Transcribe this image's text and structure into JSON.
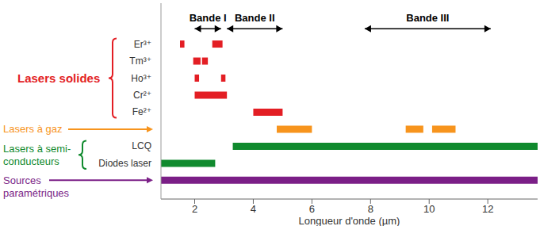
{
  "chart_data": {
    "type": "range_bar",
    "orientation": "horizontal",
    "x_label": "Longueur d'onde (µm)",
    "xlim": [
      0.85,
      13.7
    ],
    "xticks": [
      2,
      4,
      6,
      8,
      10,
      12
    ],
    "groups": [
      {
        "label": [
          "Lasers solides"
        ],
        "color": "#e31e24",
        "rows": [
          {
            "label": "Er³⁺",
            "ranges": [
              [
                1.5,
                1.65
              ],
              [
                2.6,
                2.95
              ]
            ]
          },
          {
            "label": "Tm³⁺",
            "ranges": [
              [
                1.95,
                2.2
              ],
              [
                2.25,
                2.45
              ]
            ]
          },
          {
            "label": "Ho³⁺",
            "ranges": [
              [
                2.0,
                2.15
              ],
              [
                2.9,
                3.05
              ]
            ]
          },
          {
            "label": "Cr²⁺",
            "ranges": [
              [
                2.0,
                3.1
              ]
            ]
          },
          {
            "label": "Fe²⁺",
            "ranges": [
              [
                4.0,
                5.0
              ]
            ]
          }
        ]
      },
      {
        "label": [
          "Lasers à gaz"
        ],
        "color": "#f7941d",
        "rows": [
          {
            "label": null,
            "ranges": [
              [
                4.8,
                6.0
              ],
              [
                9.2,
                9.8
              ],
              [
                10.1,
                10.9
              ]
            ]
          }
        ]
      },
      {
        "label": [
          "Lasers à semi-",
          "conducteurs"
        ],
        "color": "#108a2e",
        "rows": [
          {
            "label": "LCQ",
            "ranges": [
              [
                3.3,
                13.7
              ]
            ]
          },
          {
            "label": "Diodes laser",
            "ranges": [
              [
                0.85,
                2.7
              ]
            ]
          }
        ]
      },
      {
        "label": [
          "Sources",
          "paramétriques"
        ],
        "color": "#7b1f87",
        "rows": [
          {
            "label": null,
            "ranges": [
              [
                0.85,
                13.7
              ]
            ]
          }
        ]
      }
    ],
    "bands": [
      {
        "label": "Bande I",
        "start": 2.0,
        "end": 2.9
      },
      {
        "label": "Bande II",
        "start": 3.1,
        "end": 5.0
      },
      {
        "label": "Bande III",
        "start": 7.8,
        "end": 12.1
      }
    ]
  }
}
